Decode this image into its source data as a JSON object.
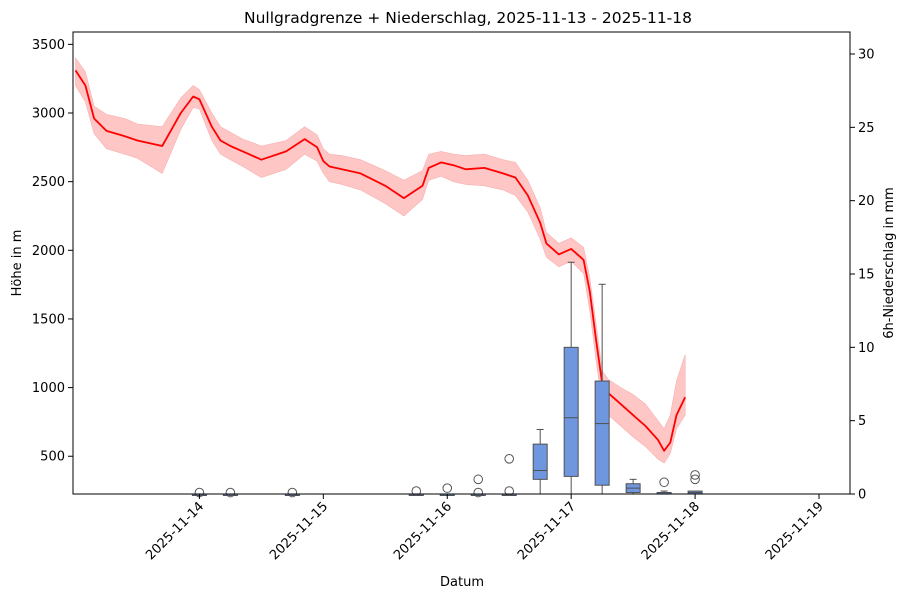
{
  "chart_data": {
    "type": "line",
    "title": "Nullgradgrenze + Niederschlag, 2025-11-13 - 2025-11-18",
    "xlabel": "Datum",
    "ylabel": "Höhe in m",
    "y2label": "6h-Niederschlag in mm",
    "x_tick_labels": [
      "2025-11-14",
      "2025-11-15",
      "2025-11-16",
      "2025-11-17",
      "2025-11-18",
      "2025-11-19"
    ],
    "y_tick_labels": [
      "500",
      "1000",
      "1500",
      "2000",
      "2500",
      "3000",
      "3500"
    ],
    "y2_tick_labels": [
      "0",
      "5",
      "10",
      "15",
      "20",
      "25",
      "30"
    ],
    "xlim_days": [
      -0.52,
      5.75
    ],
    "ylim": [
      225,
      3590
    ],
    "y2lim": [
      0,
      31.5
    ],
    "grid": false,
    "colors": {
      "line": "#ff0000",
      "band": "#ffc0c0",
      "box": "#6f97e0",
      "box_edge": "#505050"
    },
    "series": [
      {
        "name": "Nullgradgrenze",
        "style": "line with uncertainty band",
        "x_days": [
          -0.5,
          -0.42,
          -0.35,
          -0.25,
          -0.1,
          0.0,
          0.2,
          0.35,
          0.45,
          0.5,
          0.6,
          0.67,
          0.75,
          0.85,
          1.0,
          1.2,
          1.35,
          1.45,
          1.5,
          1.55,
          1.65,
          1.8,
          2.0,
          2.15,
          2.3,
          2.35,
          2.45,
          2.55,
          2.65,
          2.8,
          2.95,
          3.05,
          3.15,
          3.25,
          3.3,
          3.4,
          3.5,
          3.6,
          3.65,
          3.7,
          3.75,
          3.8,
          3.9,
          4.0,
          4.1,
          4.2,
          4.25,
          4.3,
          4.35,
          4.42
        ],
        "median": [
          3310,
          3200,
          2960,
          2870,
          2830,
          2800,
          2760,
          3000,
          3120,
          3100,
          2900,
          2800,
          2760,
          2720,
          2660,
          2720,
          2810,
          2750,
          2650,
          2610,
          2590,
          2560,
          2470,
          2380,
          2470,
          2600,
          2640,
          2620,
          2590,
          2600,
          2560,
          2530,
          2400,
          2200,
          2050,
          1970,
          2010,
          1930,
          1700,
          1350,
          1030,
          960,
          880,
          800,
          720,
          620,
          540,
          600,
          800,
          930
        ],
        "lower": [
          3200,
          3080,
          2850,
          2740,
          2700,
          2670,
          2560,
          2880,
          3040,
          3030,
          2800,
          2700,
          2660,
          2610,
          2530,
          2590,
          2700,
          2650,
          2560,
          2500,
          2480,
          2440,
          2340,
          2250,
          2370,
          2510,
          2540,
          2500,
          2480,
          2470,
          2440,
          2400,
          2280,
          2080,
          1950,
          1880,
          1920,
          1830,
          1560,
          1200,
          880,
          800,
          720,
          640,
          570,
          480,
          450,
          520,
          700,
          800
        ],
        "upper": [
          3400,
          3300,
          3050,
          2990,
          2960,
          2920,
          2900,
          3110,
          3200,
          3170,
          3000,
          2900,
          2860,
          2810,
          2760,
          2800,
          2900,
          2840,
          2740,
          2700,
          2690,
          2660,
          2580,
          2510,
          2580,
          2700,
          2720,
          2700,
          2690,
          2700,
          2660,
          2640,
          2510,
          2310,
          2130,
          2050,
          2090,
          2020,
          1800,
          1470,
          1120,
          1060,
          1000,
          950,
          880,
          760,
          700,
          800,
          1050,
          1240
        ]
      }
    ],
    "precip_boxes": [
      {
        "x_day": 0.5,
        "q1": 0,
        "median": 0,
        "q3": 0,
        "whisker_low": 0,
        "whisker_high": 0,
        "fliers": [
          0.1
        ]
      },
      {
        "x_day": 0.75,
        "q1": 0,
        "median": 0,
        "q3": 0,
        "whisker_low": 0,
        "whisker_high": 0,
        "fliers": [
          0.1
        ]
      },
      {
        "x_day": 1.25,
        "q1": 0,
        "median": 0,
        "q3": 0,
        "whisker_low": 0,
        "whisker_high": 0,
        "fliers": [
          0.1
        ]
      },
      {
        "x_day": 2.25,
        "q1": 0,
        "median": 0,
        "q3": 0,
        "whisker_low": 0,
        "whisker_high": 0,
        "fliers": [
          0.2
        ]
      },
      {
        "x_day": 2.5,
        "q1": 0,
        "median": 0,
        "q3": 0,
        "whisker_low": 0,
        "whisker_high": 0,
        "fliers": [
          0.4
        ]
      },
      {
        "x_day": 2.75,
        "q1": 0,
        "median": 0,
        "q3": 0,
        "whisker_low": 0,
        "whisker_high": 0,
        "fliers": [
          0.1,
          1.0
        ]
      },
      {
        "x_day": 3.0,
        "q1": 0,
        "median": 0,
        "q3": 0,
        "whisker_low": 0,
        "whisker_high": 0,
        "fliers": [
          0.2,
          2.4
        ]
      },
      {
        "x_day": 3.25,
        "q1": 1.0,
        "median": 1.6,
        "q3": 3.4,
        "whisker_low": 0,
        "whisker_high": 4.4,
        "fliers": []
      },
      {
        "x_day": 3.5,
        "q1": 1.2,
        "median": 5.2,
        "q3": 10.0,
        "whisker_low": 0,
        "whisker_high": 15.8,
        "fliers": []
      },
      {
        "x_day": 3.75,
        "q1": 0.6,
        "median": 4.8,
        "q3": 7.7,
        "whisker_low": 0,
        "whisker_high": 14.3,
        "fliers": []
      },
      {
        "x_day": 4.0,
        "q1": 0.1,
        "median": 0.4,
        "q3": 0.7,
        "whisker_low": 0,
        "whisker_high": 1.0,
        "fliers": []
      },
      {
        "x_day": 4.25,
        "q1": 0,
        "median": 0.1,
        "q3": 0.1,
        "whisker_low": 0,
        "whisker_high": 0.2,
        "fliers": [
          0.8
        ]
      },
      {
        "x_day": 4.5,
        "q1": 0,
        "median": 0.1,
        "q3": 0.2,
        "whisker_low": 0,
        "whisker_high": 0.2,
        "fliers": [
          1.0,
          1.3
        ]
      }
    ],
    "zero_boxes_x_days": [
      -0.25,
      0.0,
      0.25,
      1.0,
      1.5,
      1.75,
      2.0
    ]
  }
}
